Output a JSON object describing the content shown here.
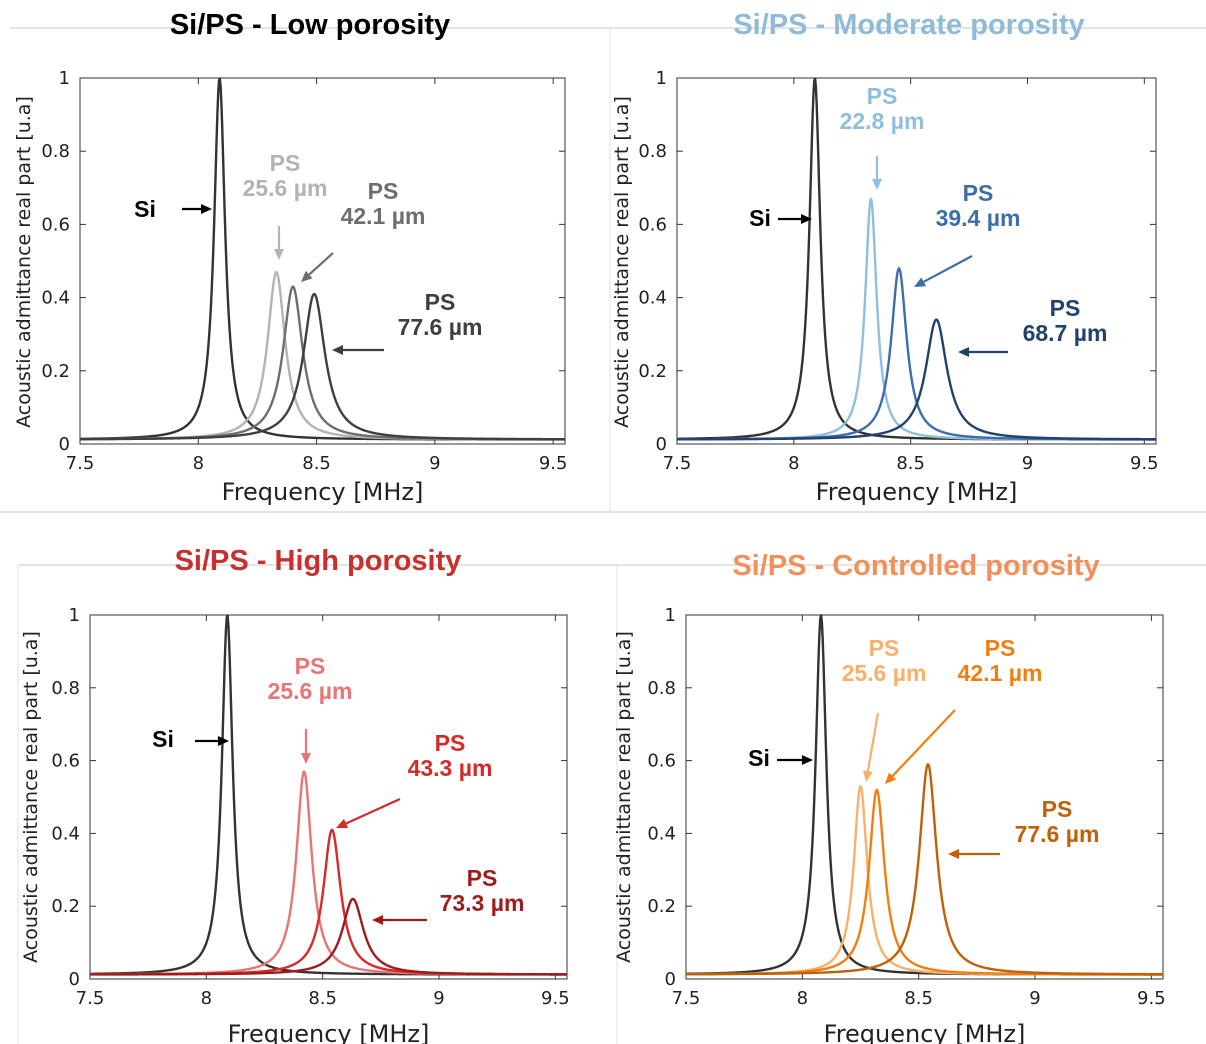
{
  "chart_data": [
    {
      "type": "line",
      "title": "Si/PS - Low porosity",
      "title_color": "#000000",
      "xlabel": "Frequency [MHz]",
      "ylabel": "Acoustic admittance real part [u.a]",
      "xlim": [
        7.5,
        9.55
      ],
      "ylim": [
        0,
        1
      ],
      "xticks": [
        "7.5",
        "8",
        "8.5",
        "9",
        "9.5"
      ],
      "yticks": [
        "0",
        "0.2",
        "0.4",
        "0.6",
        "0.8",
        "1"
      ],
      "series": [
        {
          "name": "Si",
          "color": "#333333",
          "peak_x": 8.09,
          "peak_y": 1.0
        },
        {
          "name": "PS 25.6 µm",
          "color": "#b3b3b3",
          "peak_x": 8.33,
          "peak_y": 0.47
        },
        {
          "name": "PS 42.1 µm",
          "color": "#6e6e6e",
          "peak_x": 8.4,
          "peak_y": 0.43
        },
        {
          "name": "PS 77.6 µm",
          "color": "#3f3f3f",
          "peak_x": 8.49,
          "peak_y": 0.41
        }
      ],
      "annotations": [
        {
          "lines": [
            "Si"
          ],
          "color": "#000000"
        },
        {
          "lines": [
            "PS",
            "25.6 µm"
          ],
          "color": "#b3b3b3"
        },
        {
          "lines": [
            "PS",
            "42.1 µm"
          ],
          "color": "#6e6e6e"
        },
        {
          "lines": [
            "PS",
            "77.6 µm"
          ],
          "color": "#3f3f3f"
        }
      ]
    },
    {
      "type": "line",
      "title": "Si/PS - Moderate porosity",
      "title_color": "#8fbad8",
      "xlabel": "Frequency [MHz]",
      "ylabel": "Acoustic admittance real part [u.a]",
      "xlim": [
        7.5,
        9.55
      ],
      "ylim": [
        0,
        1
      ],
      "xticks": [
        "7.5",
        "8",
        "8.5",
        "9",
        "9.5"
      ],
      "yticks": [
        "0",
        "0.2",
        "0.4",
        "0.6",
        "0.8",
        "1"
      ],
      "series": [
        {
          "name": "Si",
          "color": "#333333",
          "peak_x": 8.09,
          "peak_y": 1.0
        },
        {
          "name": "PS 22.8 µm",
          "color": "#8fbfdd",
          "peak_x": 8.33,
          "peak_y": 0.67
        },
        {
          "name": "PS 39.4 µm",
          "color": "#3d6ea8",
          "peak_x": 8.45,
          "peak_y": 0.48
        },
        {
          "name": "PS 68.7 µm",
          "color": "#22426e",
          "peak_x": 8.61,
          "peak_y": 0.34
        }
      ],
      "annotations": [
        {
          "lines": [
            "Si"
          ],
          "color": "#000000"
        },
        {
          "lines": [
            "PS",
            "22.8 µm"
          ],
          "color": "#8fbfdd"
        },
        {
          "lines": [
            "PS",
            "39.4 µm"
          ],
          "color": "#3d6ea8"
        },
        {
          "lines": [
            "PS",
            "68.7 µm"
          ],
          "color": "#22426e"
        }
      ]
    },
    {
      "type": "line",
      "title": "Si/PS - High porosity",
      "title_color": "#c8302e",
      "xlabel": "Frequency [MHz]",
      "ylabel": "Acoustic admittance real part [u.a]",
      "xlim": [
        7.5,
        9.55
      ],
      "ylim": [
        0,
        1
      ],
      "xticks": [
        "7.5",
        "8",
        "8.5",
        "9",
        "9.5"
      ],
      "yticks": [
        "0",
        "0.2",
        "0.4",
        "0.6",
        "0.8",
        "1"
      ],
      "series": [
        {
          "name": "Si",
          "color": "#333333",
          "peak_x": 8.09,
          "peak_y": 1.0
        },
        {
          "name": "PS 25.6 µm",
          "color": "#e87474",
          "peak_x": 8.42,
          "peak_y": 0.57
        },
        {
          "name": "PS 43.3 µm",
          "color": "#d42a2a",
          "peak_x": 8.54,
          "peak_y": 0.41
        },
        {
          "name": "PS 73.3 µm",
          "color": "#9e1c1c",
          "peak_x": 8.63,
          "peak_y": 0.22
        }
      ],
      "annotations": [
        {
          "lines": [
            "Si"
          ],
          "color": "#000000"
        },
        {
          "lines": [
            "PS",
            "25.6 µm"
          ],
          "color": "#e87474"
        },
        {
          "lines": [
            "PS",
            "43.3 µm"
          ],
          "color": "#d42a2a"
        },
        {
          "lines": [
            "PS",
            "73.3 µm"
          ],
          "color": "#9e1c1c"
        }
      ]
    },
    {
      "type": "line",
      "title": "Si/PS - Controlled porosity",
      "title_color": "#f0905a",
      "xlabel": "Frequency [MHz]",
      "ylabel": "Acoustic admittance real part [u.a]",
      "xlim": [
        7.5,
        9.55
      ],
      "ylim": [
        0,
        1
      ],
      "xticks": [
        "7.5",
        "8",
        "8.5",
        "9",
        "9.5"
      ],
      "yticks": [
        "0",
        "0.2",
        "0.4",
        "0.6",
        "0.8",
        "1"
      ],
      "series": [
        {
          "name": "Si",
          "color": "#333333",
          "peak_x": 8.08,
          "peak_y": 1.0
        },
        {
          "name": "PS 25.6 µm",
          "color": "#f8b06a",
          "peak_x": 8.25,
          "peak_y": 0.53
        },
        {
          "name": "PS 42.1 µm",
          "color": "#f07f10",
          "peak_x": 8.32,
          "peak_y": 0.52
        },
        {
          "name": "PS 77.6 µm",
          "color": "#c06008",
          "peak_x": 8.54,
          "peak_y": 0.59
        }
      ],
      "annotations": [
        {
          "lines": [
            "Si"
          ],
          "color": "#000000"
        },
        {
          "lines": [
            "PS",
            "25.6 µm"
          ],
          "color": "#f8b06a"
        },
        {
          "lines": [
            "PS",
            "42.1 µm"
          ],
          "color": "#f07f10"
        },
        {
          "lines": [
            "PS",
            "77.6 µm"
          ],
          "color": "#c06008"
        }
      ]
    }
  ]
}
